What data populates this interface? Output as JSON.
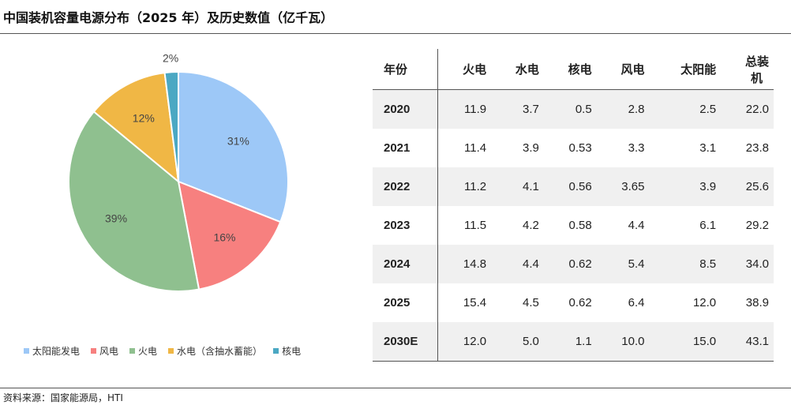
{
  "title": "中国装机容量电源分布（2025 年）及历史数值（亿千瓦）",
  "source": "资料来源：国家能源局，HTI",
  "chart_data": [
    {
      "type": "pie",
      "title": "",
      "slices": [
        {
          "name": "太阳能发电",
          "value": 31,
          "label": "31%",
          "color": "#9dc8f7"
        },
        {
          "name": "风电",
          "value": 16,
          "label": "16%",
          "color": "#f7807f"
        },
        {
          "name": "火电",
          "value": 39,
          "label": "39%",
          "color": "#8fc08f"
        },
        {
          "name": "水电（含抽水蓄能）",
          "value": 12,
          "label": "12%",
          "color": "#f0b745"
        },
        {
          "name": "核电",
          "value": 2,
          "label": "2%",
          "color": "#4ba8c3"
        }
      ],
      "legend_position": "bottom"
    },
    {
      "type": "table",
      "columns": [
        "年份",
        "火电",
        "水电",
        "核电",
        "风电",
        "太阳能",
        "总装机"
      ],
      "rows": [
        [
          "2020",
          "11.9",
          "3.7",
          "0.5",
          "2.8",
          "2.5",
          "22.0"
        ],
        [
          "2021",
          "11.4",
          "3.9",
          "0.53",
          "3.3",
          "3.1",
          "23.8"
        ],
        [
          "2022",
          "11.2",
          "4.1",
          "0.56",
          "3.65",
          "3.9",
          "25.6"
        ],
        [
          "2023",
          "11.5",
          "4.2",
          "0.58",
          "4.4",
          "6.1",
          "29.2"
        ],
        [
          "2024",
          "14.8",
          "4.4",
          "0.62",
          "5.4",
          "8.5",
          "34.0"
        ],
        [
          "2025",
          "15.4",
          "4.5",
          "0.62",
          "6.4",
          "12.0",
          "38.9"
        ],
        [
          "2030E",
          "12.0",
          "5.0",
          "1.1",
          "10.0",
          "15.0",
          "43.1"
        ]
      ]
    }
  ]
}
